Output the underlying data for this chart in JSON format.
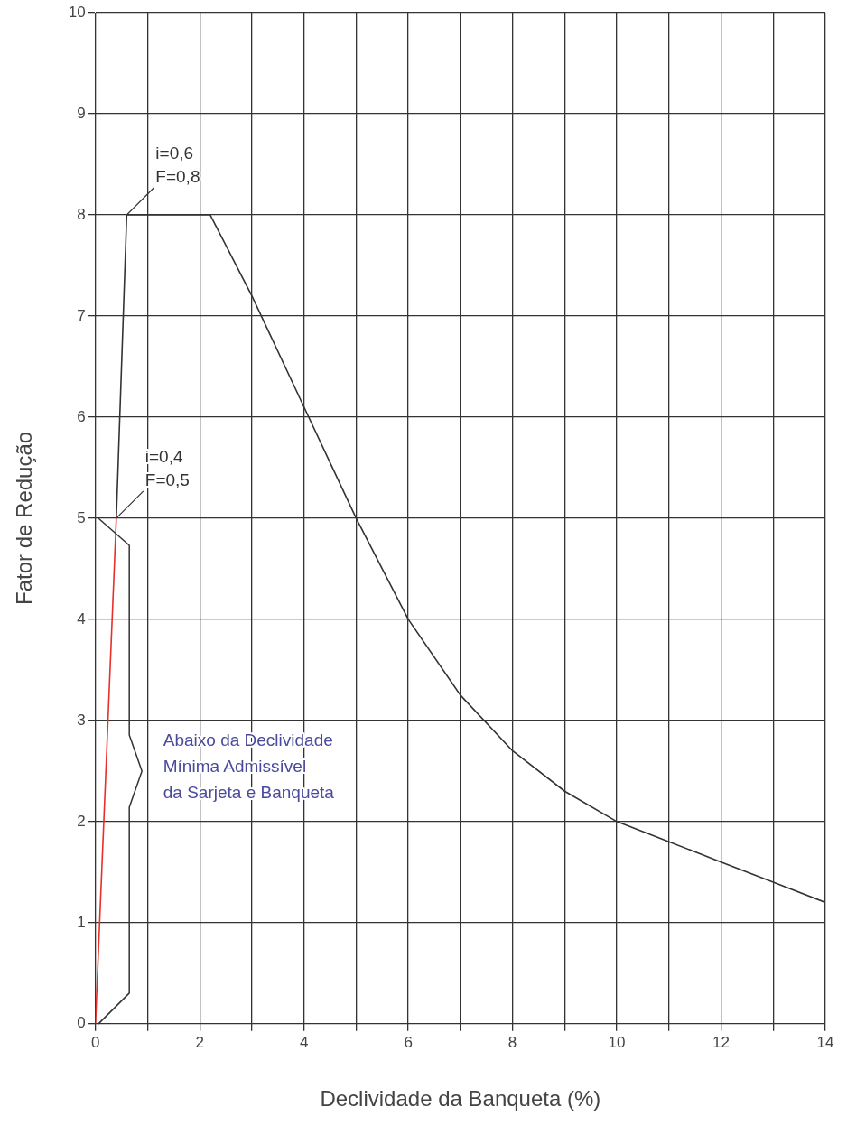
{
  "chart_data": {
    "type": "line",
    "xlabel": "Declividade da Banqueta (%)",
    "ylabel": "Fator de Redução",
    "xlim": [
      0,
      14
    ],
    "ylim": [
      0,
      10
    ],
    "xticks": [
      0,
      {
        "value": 1,
        "label": null
      },
      2,
      {
        "value": 3,
        "label": null
      },
      4,
      {
        "value": 5,
        "label": null
      },
      6,
      {
        "value": 7,
        "label": null
      },
      8,
      {
        "value": 9,
        "label": null
      },
      10,
      {
        "value": 11,
        "label": null
      },
      12,
      {
        "value": 13,
        "label": null
      },
      14
    ],
    "yticks": [
      0,
      1,
      2,
      3,
      4,
      5,
      6,
      7,
      8,
      9,
      10
    ],
    "grid": true,
    "legend": false,
    "marker": "none",
    "line_style": "solid",
    "series": [
      {
        "color": "#e8302a",
        "x": [
          0,
          0.4
        ],
        "values": [
          0,
          5
        ]
      },
      {
        "color": "#333333",
        "x": [
          0.4,
          0.6,
          2.2,
          3,
          4,
          5,
          6,
          7,
          8,
          9,
          10,
          11,
          12,
          13,
          14
        ],
        "values": [
          5,
          8,
          8,
          7.2,
          6.1,
          5,
          4,
          3.25,
          2.7,
          2.3,
          2.0,
          1.8,
          1.6,
          1.4,
          1.2
        ]
      }
    ],
    "annotations": [
      {
        "text": "i=0,6\nF=0,8",
        "x": 0.6,
        "y": 8
      },
      {
        "text": "i=0,4\nF=0,5",
        "x": 0.4,
        "y": 5
      },
      "Abaixo da Declividade\nMínima Admissível\nda Sarjeta e Banqueta"
    ]
  }
}
